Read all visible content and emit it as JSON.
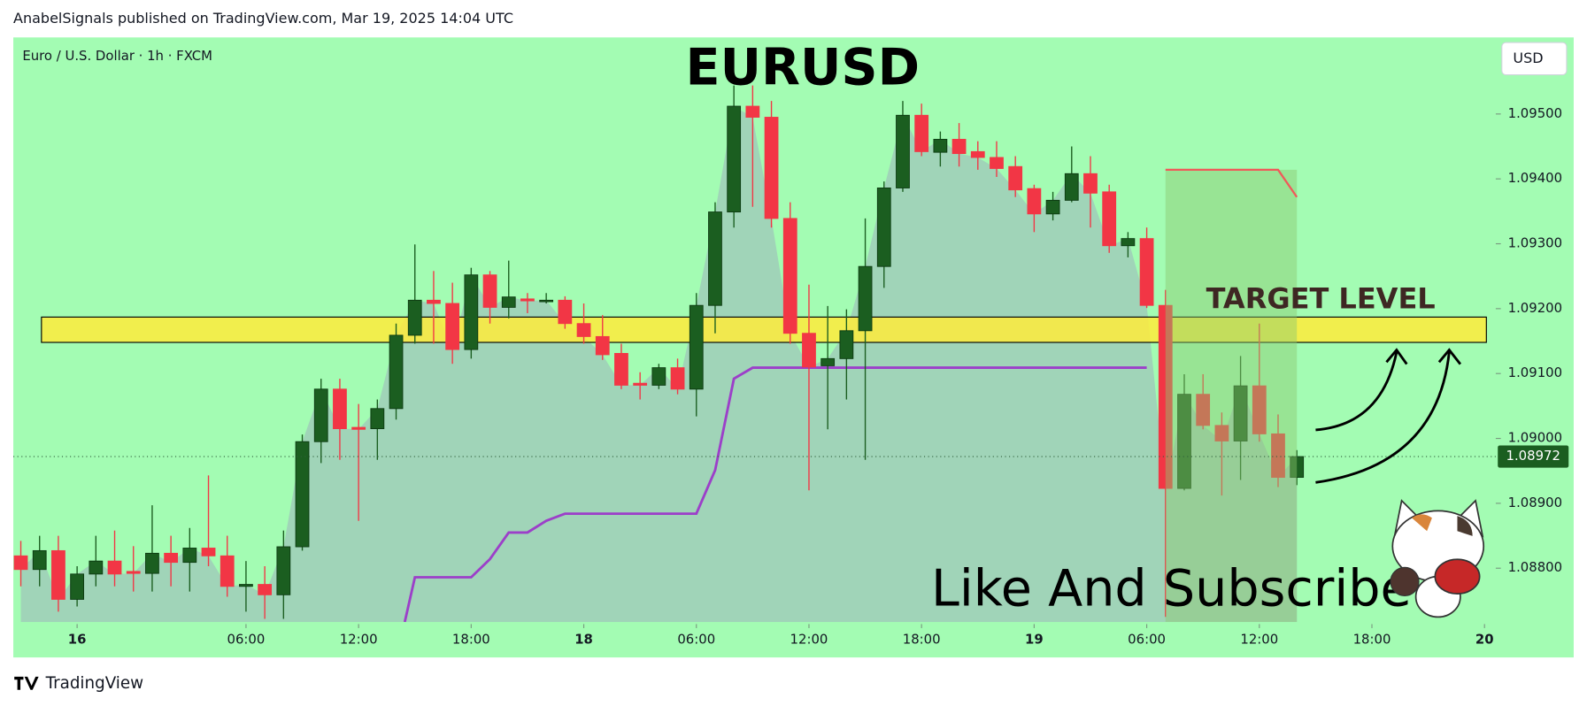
{
  "header": {
    "text": "AnabelSignals published on TradingView.com, Mar 19, 2025 14:04 UTC"
  },
  "footer": {
    "logo_text": "TradingView"
  },
  "chart_data": {
    "type": "candlestick",
    "title": "EURUSD",
    "symbol_label": "Euro / U.S. Dollar · 1h · FXCM",
    "currency": "USD",
    "annotations": [
      "TARGET LEVEL",
      "Like And Subscribe"
    ],
    "x": [
      0,
      1,
      2,
      3,
      4,
      5,
      6,
      7,
      8,
      9,
      10,
      11,
      12,
      13,
      14,
      15,
      16,
      17,
      18,
      19,
      20,
      21,
      22,
      23,
      24,
      25,
      26,
      27,
      28,
      29,
      30,
      31,
      32,
      33,
      34,
      35,
      36,
      37,
      38,
      39,
      40,
      41,
      42,
      43,
      44,
      45,
      46,
      47,
      48,
      49,
      50,
      51,
      52,
      53,
      54,
      55,
      56,
      57,
      58,
      59,
      60,
      61,
      62,
      63,
      64,
      65,
      66,
      67,
      68
    ],
    "open": [
      1.08819,
      1.08798,
      1.08827,
      1.08752,
      1.08791,
      1.08811,
      1.08795,
      1.08792,
      1.08823,
      1.08809,
      1.08831,
      1.08819,
      1.08772,
      1.08775,
      1.08759,
      1.08833,
      1.08995,
      1.09076,
      1.09017,
      1.09015,
      1.09046,
      1.09159,
      1.09213,
      1.09208,
      1.09137,
      1.09252,
      1.09202,
      1.09215,
      1.09212,
      1.09213,
      1.09177,
      1.09157,
      1.09131,
      1.09085,
      1.09082,
      1.09109,
      1.09076,
      1.09205,
      1.09349,
      1.09512,
      1.09495,
      1.09339,
      1.09162,
      1.09112,
      1.09123,
      1.09166,
      1.09265,
      1.09386,
      1.09498,
      1.09441,
      1.09461,
      1.09442,
      1.09433,
      1.09419,
      1.09385,
      1.09346,
      1.09367,
      1.09408,
      1.0938,
      1.09297,
      1.09308,
      1.09205,
      1.08923,
      1.09068,
      1.0902,
      1.08996,
      1.09081,
      1.09007,
      1.0894
    ],
    "high": [
      1.08842,
      1.0885,
      1.0885,
      1.08803,
      1.0885,
      1.08858,
      1.08834,
      1.08897,
      1.0885,
      1.08862,
      1.08943,
      1.0885,
      1.08811,
      1.08803,
      1.08858,
      1.09006,
      1.09092,
      1.09092,
      1.09053,
      1.0906,
      1.09177,
      1.09299,
      1.09258,
      1.0924,
      1.09263,
      1.09258,
      1.09274,
      1.09224,
      1.09224,
      1.09219,
      1.09208,
      1.0919,
      1.09146,
      1.09102,
      1.09115,
      1.09123,
      1.09224,
      1.09364,
      1.09544,
      1.09544,
      1.0952,
      1.09364,
      1.09237,
      1.09204,
      1.09199,
      1.09339,
      1.09396,
      1.0952,
      1.09516,
      1.09473,
      1.09486,
      1.09458,
      1.09458,
      1.09435,
      1.09391,
      1.0938,
      1.0945,
      1.09435,
      1.09391,
      1.09318,
      1.09325,
      1.09229,
      1.09099,
      1.09099,
      1.0904,
      1.09127,
      1.09177,
      1.09037,
      1.08982
    ],
    "low": [
      1.08772,
      1.08772,
      1.08733,
      1.08741,
      1.08772,
      1.08772,
      1.08764,
      1.08764,
      1.08772,
      1.08764,
      1.08803,
      1.08756,
      1.08733,
      1.08722,
      1.08722,
      1.08827,
      1.08962,
      1.08967,
      1.08873,
      1.08967,
      1.09029,
      1.09146,
      1.09146,
      1.09115,
      1.09123,
      1.09177,
      1.09185,
      1.09193,
      1.09208,
      1.09169,
      1.09146,
      1.09121,
      1.09076,
      1.0906,
      1.09076,
      1.09068,
      1.09034,
      1.09162,
      1.09325,
      1.09357,
      1.09325,
      1.09146,
      1.0892,
      1.09014,
      1.0906,
      1.08967,
      1.09232,
      1.0938,
      1.09435,
      1.09419,
      1.09419,
      1.09414,
      1.09403,
      1.09372,
      1.09318,
      1.09336,
      1.09364,
      1.09325,
      1.09286,
      1.09279,
      1.09201,
      1.08725,
      1.0892,
      1.09014,
      1.08912,
      1.08936,
      1.08995,
      1.08925,
      1.08928
    ],
    "close": [
      1.08798,
      1.08827,
      1.08752,
      1.08791,
      1.08811,
      1.08791,
      1.08792,
      1.08823,
      1.08809,
      1.08831,
      1.08819,
      1.08772,
      1.08775,
      1.08759,
      1.08833,
      1.08995,
      1.09076,
      1.09015,
      1.09014,
      1.09046,
      1.09159,
      1.09213,
      1.09208,
      1.09137,
      1.09252,
      1.09202,
      1.09218,
      1.09212,
      1.09213,
      1.09177,
      1.09157,
      1.09129,
      1.09082,
      1.09082,
      1.09109,
      1.09076,
      1.09205,
      1.09349,
      1.09512,
      1.09495,
      1.09339,
      1.09162,
      1.0911,
      1.09123,
      1.09166,
      1.09265,
      1.09386,
      1.09498,
      1.09442,
      1.09461,
      1.09439,
      1.09433,
      1.09416,
      1.09383,
      1.09346,
      1.09367,
      1.09408,
      1.09378,
      1.09297,
      1.09308,
      1.09205,
      1.08923,
      1.09068,
      1.0902,
      1.08996,
      1.09081,
      1.09007,
      1.0894,
      1.08972
    ],
    "up_color": "#1b5e20",
    "down_color": "#f23645",
    "xlim": [
      -0.4,
      78.6
    ],
    "ylim": [
      1.08717,
      1.09618
    ],
    "xticks": [
      {
        "value": 3,
        "label": "16"
      },
      {
        "value": 12,
        "label": "06:00"
      },
      {
        "value": 18,
        "label": "12:00"
      },
      {
        "value": 24,
        "label": "18:00"
      },
      {
        "value": 30,
        "label": "18"
      },
      {
        "value": 36,
        "label": "06:00"
      },
      {
        "value": 42,
        "label": "12:00"
      },
      {
        "value": 48,
        "label": "18:00"
      },
      {
        "value": 54,
        "label": "19"
      },
      {
        "value": 60,
        "label": "06:00"
      },
      {
        "value": 66,
        "label": "12:00"
      },
      {
        "value": 72,
        "label": "18:00"
      },
      {
        "value": 78,
        "label": "20"
      }
    ],
    "yticks": [
      {
        "value": 1.095,
        "label": "1.09500"
      },
      {
        "value": 1.094,
        "label": "1.09400"
      },
      {
        "value": 1.093,
        "label": "1.09300"
      },
      {
        "value": 1.092,
        "label": "1.09200"
      },
      {
        "value": 1.091,
        "label": "1.09100"
      },
      {
        "value": 1.09,
        "label": "1.09000"
      },
      {
        "value": 1.089,
        "label": "1.08900"
      },
      {
        "value": 1.088,
        "label": "1.08800"
      }
    ],
    "last_price": 1.08972,
    "target_zone": {
      "low": 1.09148,
      "high": 1.09187,
      "from": 1.1,
      "to": 78.1,
      "color": "#ffeb3b"
    },
    "overlay_line": {
      "color": "#9c3fc9",
      "x": [
        20.46,
        21,
        24,
        25,
        26,
        27,
        28,
        29,
        36,
        37,
        38,
        39,
        60
      ],
      "y": [
        1.08717,
        1.08786,
        1.08786,
        1.08814,
        1.08855,
        1.08855,
        1.08873,
        1.08884,
        1.08884,
        1.08951,
        1.09092,
        1.09109,
        1.09109
      ]
    },
    "projection": {
      "from": 61,
      "to": 68,
      "x": [
        61,
        67,
        68
      ],
      "y": [
        1.09414,
        1.09414,
        1.09372
      ],
      "color": "#f05a5a"
    }
  }
}
